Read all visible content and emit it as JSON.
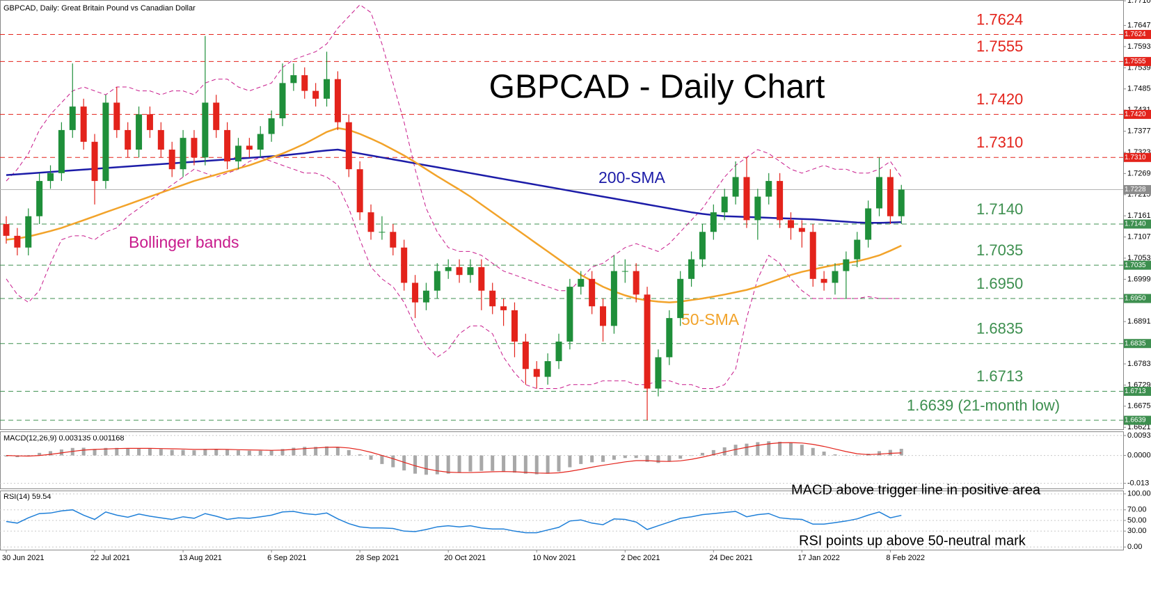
{
  "chart_data": [
    {
      "type": "candlestick",
      "header": "GBPCAD, Daily:  Great Britain Pound vs Canadian Dollar",
      "title": "GBPCAD - Daily Chart",
      "categories": [
        "30 Jun 2021",
        null,
        null,
        null,
        null,
        null,
        null,
        null,
        "22 Jul 2021",
        null,
        null,
        null,
        null,
        null,
        null,
        null,
        "13 Aug 2021",
        null,
        null,
        null,
        null,
        null,
        null,
        null,
        "6 Sep 2021",
        null,
        null,
        null,
        null,
        null,
        null,
        null,
        "28 Sep 2021",
        null,
        null,
        null,
        null,
        null,
        null,
        null,
        "20 Oct 2021",
        null,
        null,
        null,
        null,
        null,
        null,
        null,
        "10 Nov 2021",
        null,
        null,
        null,
        null,
        null,
        null,
        null,
        "2 Dec 2021",
        null,
        null,
        null,
        null,
        null,
        null,
        null,
        "24 Dec 2021",
        null,
        null,
        null,
        null,
        null,
        null,
        null,
        "17 Jan 2022",
        null,
        null,
        null,
        null,
        null,
        null,
        null,
        "8 Feb 2022",
        null
      ],
      "open": [
        1.714,
        1.711,
        1.708,
        1.716,
        1.725,
        1.727,
        1.738,
        1.744,
        1.735,
        1.725,
        1.745,
        1.738,
        1.733,
        1.742,
        1.738,
        1.733,
        1.728,
        1.736,
        1.731,
        1.745,
        1.738,
        1.73,
        1.734,
        1.733,
        1.737,
        1.741,
        1.75,
        1.752,
        1.748,
        1.746,
        1.751,
        1.74,
        1.728,
        1.717,
        1.712,
        1.712,
        1.708,
        1.699,
        1.694,
        1.697,
        1.702,
        1.703,
        1.701,
        1.703,
        1.697,
        1.693,
        1.692,
        1.684,
        1.677,
        1.675,
        1.679,
        1.684,
        1.698,
        1.7,
        1.693,
        1.688,
        1.702,
        1.702,
        1.696,
        1.672,
        1.68,
        1.69,
        1.7,
        1.705,
        1.712,
        1.717,
        1.721,
        1.726,
        1.715,
        1.721,
        1.725,
        1.715,
        1.713,
        1.712,
        1.7,
        1.699,
        1.702,
        1.705,
        1.71,
        1.718,
        1.726,
        1.716
      ],
      "high": [
        1.716,
        1.713,
        1.718,
        1.727,
        1.729,
        1.74,
        1.755,
        1.746,
        1.737,
        1.747,
        1.749,
        1.74,
        1.744,
        1.744,
        1.74,
        1.735,
        1.738,
        1.738,
        1.762,
        1.747,
        1.74,
        1.736,
        1.736,
        1.739,
        1.743,
        1.755,
        1.755,
        1.754,
        1.75,
        1.758,
        1.753,
        1.742,
        1.73,
        1.719,
        1.716,
        1.714,
        1.71,
        1.701,
        1.699,
        1.704,
        1.705,
        1.705,
        1.705,
        1.705,
        1.699,
        1.695,
        1.694,
        1.686,
        1.679,
        1.681,
        1.686,
        1.7,
        1.702,
        1.702,
        1.695,
        1.706,
        1.705,
        1.704,
        1.698,
        1.682,
        1.692,
        1.702,
        1.707,
        1.714,
        1.719,
        1.723,
        1.73,
        1.731,
        1.723,
        1.727,
        1.727,
        1.717,
        1.715,
        1.714,
        1.702,
        1.704,
        1.707,
        1.712,
        1.72,
        1.731,
        1.728,
        1.724
      ],
      "low": [
        1.709,
        1.706,
        1.706,
        1.714,
        1.723,
        1.725,
        1.736,
        1.733,
        1.719,
        1.723,
        1.736,
        1.731,
        1.731,
        1.736,
        1.731,
        1.726,
        1.726,
        1.729,
        1.729,
        1.736,
        1.728,
        1.728,
        1.731,
        1.731,
        1.735,
        1.739,
        1.748,
        1.746,
        1.744,
        1.744,
        1.738,
        1.726,
        1.715,
        1.71,
        1.71,
        1.706,
        1.697,
        1.69,
        1.692,
        1.695,
        1.7,
        1.699,
        1.699,
        1.692,
        1.691,
        1.688,
        1.68,
        1.673,
        1.672,
        1.673,
        1.677,
        1.682,
        1.696,
        1.691,
        1.684,
        1.686,
        1.699,
        1.694,
        1.6639,
        1.67,
        1.678,
        1.688,
        1.698,
        1.703,
        1.71,
        1.715,
        1.719,
        1.713,
        1.71,
        1.719,
        1.713,
        1.71,
        1.708,
        1.698,
        1.697,
        1.696,
        1.695,
        1.703,
        1.708,
        1.716,
        1.714,
        1.714
      ],
      "close": [
        1.711,
        1.708,
        1.716,
        1.725,
        1.727,
        1.738,
        1.744,
        1.735,
        1.725,
        1.745,
        1.738,
        1.733,
        1.742,
        1.738,
        1.733,
        1.728,
        1.736,
        1.731,
        1.745,
        1.738,
        1.73,
        1.734,
        1.733,
        1.737,
        1.741,
        1.75,
        1.752,
        1.748,
        1.746,
        1.751,
        1.74,
        1.728,
        1.717,
        1.712,
        1.712,
        1.708,
        1.699,
        1.694,
        1.697,
        1.702,
        1.703,
        1.701,
        1.703,
        1.697,
        1.693,
        1.692,
        1.684,
        1.677,
        1.675,
        1.679,
        1.684,
        1.698,
        1.7,
        1.693,
        1.688,
        1.702,
        1.702,
        1.696,
        1.672,
        1.68,
        1.69,
        1.7,
        1.705,
        1.712,
        1.717,
        1.721,
        1.726,
        1.715,
        1.721,
        1.725,
        1.715,
        1.713,
        1.712,
        1.7,
        1.699,
        1.702,
        1.705,
        1.71,
        1.718,
        1.726,
        1.716,
        1.7228
      ],
      "up_color": "#1f8f3a",
      "down_color": "#e3231b",
      "last_color": "#b4b4b4",
      "overlays": [
        {
          "name": "200-SMA",
          "color": "#1c1ca8",
          "values": [
            1.7265,
            1.7267,
            1.7269,
            1.7271,
            1.7273,
            1.7275,
            1.7277,
            1.7279,
            1.7281,
            1.7283,
            1.7285,
            1.7287,
            1.7289,
            1.7291,
            1.7293,
            1.7295,
            1.7297,
            1.7299,
            1.7301,
            1.7303,
            1.7305,
            1.7307,
            1.7309,
            1.7311,
            1.7313,
            1.7315,
            1.7318,
            1.7321,
            1.7325,
            1.7328,
            1.733,
            1.7325,
            1.732,
            1.7315,
            1.731,
            1.7305,
            1.73,
            1.7295,
            1.729,
            1.7285,
            1.728,
            1.7275,
            1.727,
            1.7265,
            1.726,
            1.7255,
            1.725,
            1.7245,
            1.724,
            1.7235,
            1.723,
            1.7225,
            1.722,
            1.7215,
            1.721,
            1.7205,
            1.72,
            1.7195,
            1.719,
            1.7185,
            1.718,
            1.7175,
            1.717,
            1.7166,
            1.7163,
            1.716,
            1.7159,
            1.7158,
            1.7157,
            1.7156,
            1.7155,
            1.7154,
            1.7153,
            1.7152,
            1.715,
            1.7148,
            1.7146,
            1.7144,
            1.7143,
            1.7143,
            1.7144,
            1.7145
          ]
        },
        {
          "name": "50-SMA",
          "color": "#f2a32a",
          "values": [
            1.71,
            1.7103,
            1.7108,
            1.7115,
            1.7122,
            1.713,
            1.714,
            1.715,
            1.716,
            1.717,
            1.718,
            1.719,
            1.72,
            1.721,
            1.722,
            1.723,
            1.724,
            1.725,
            1.7258,
            1.7266,
            1.7274,
            1.7282,
            1.729,
            1.73,
            1.731,
            1.732,
            1.7332,
            1.7345,
            1.736,
            1.7375,
            1.7385,
            1.738,
            1.737,
            1.7358,
            1.7345,
            1.733,
            1.7315,
            1.7298,
            1.728,
            1.7262,
            1.7245,
            1.7228,
            1.721,
            1.719,
            1.717,
            1.715,
            1.713,
            1.711,
            1.709,
            1.707,
            1.705,
            1.703,
            1.701,
            1.6995,
            1.698,
            1.6968,
            1.6958,
            1.695,
            1.6945,
            1.6942,
            1.694,
            1.6942,
            1.6946,
            1.695,
            1.6955,
            1.696,
            1.6966,
            1.6972,
            1.698,
            1.699,
            1.7,
            1.701,
            1.7018,
            1.7024,
            1.703,
            1.7036,
            1.704,
            1.7045,
            1.7052,
            1.706,
            1.7072,
            1.7085
          ]
        }
      ],
      "bollinger": {
        "name": "Bollinger bands",
        "color": "#c81b8c",
        "upper": [
          1.725,
          1.728,
          1.732,
          1.738,
          1.742,
          1.745,
          1.748,
          1.749,
          1.748,
          1.747,
          1.749,
          1.749,
          1.748,
          1.748,
          1.747,
          1.748,
          1.748,
          1.747,
          1.75,
          1.751,
          1.751,
          1.749,
          1.748,
          1.749,
          1.75,
          1.754,
          1.756,
          1.757,
          1.758,
          1.76,
          1.764,
          1.767,
          1.77,
          1.768,
          1.76,
          1.75,
          1.74,
          1.728,
          1.718,
          1.712,
          1.708,
          1.707,
          1.707,
          1.706,
          1.704,
          1.702,
          1.701,
          1.7,
          1.699,
          1.698,
          1.697,
          1.697,
          1.7,
          1.703,
          1.704,
          1.706,
          1.708,
          1.709,
          1.708,
          1.707,
          1.709,
          1.712,
          1.715,
          1.718,
          1.722,
          1.726,
          1.729,
          1.731,
          1.733,
          1.732,
          1.73,
          1.728,
          1.727,
          1.728,
          1.729,
          1.728,
          1.728,
          1.727,
          1.727,
          1.728,
          1.73,
          1.726
        ],
        "lower": [
          1.7,
          1.696,
          1.694,
          1.697,
          1.704,
          1.71,
          1.711,
          1.711,
          1.71,
          1.712,
          1.713,
          1.716,
          1.718,
          1.72,
          1.722,
          1.724,
          1.726,
          1.728,
          1.727,
          1.726,
          1.727,
          1.728,
          1.73,
          1.731,
          1.73,
          1.729,
          1.728,
          1.727,
          1.727,
          1.726,
          1.724,
          1.718,
          1.71,
          1.703,
          1.7,
          1.698,
          1.694,
          1.688,
          1.683,
          1.68,
          1.682,
          1.686,
          1.688,
          1.688,
          1.686,
          1.68,
          1.676,
          1.673,
          1.672,
          1.672,
          1.672,
          1.673,
          1.673,
          1.673,
          1.674,
          1.674,
          1.674,
          1.673,
          1.673,
          1.674,
          1.674,
          1.673,
          1.673,
          1.672,
          1.672,
          1.673,
          1.677,
          1.69,
          1.7,
          1.706,
          1.704,
          1.7,
          1.697,
          1.695,
          1.695,
          1.695,
          1.695,
          1.695,
          1.6955,
          1.695,
          1.695,
          1.695
        ]
      },
      "levels": [
        {
          "value": 1.7624,
          "label": "1.7624",
          "color": "#e3231b"
        },
        {
          "value": 1.7555,
          "label": "1.7555",
          "color": "#e3231b"
        },
        {
          "value": 1.742,
          "label": "1.7420",
          "color": "#e3231b"
        },
        {
          "value": 1.731,
          "label": "1.7310",
          "color": "#e3231b"
        },
        {
          "value": 1.714,
          "label": "1.7140",
          "color": "#3d8f4f"
        },
        {
          "value": 1.7035,
          "label": "1.7035",
          "color": "#3d8f4f"
        },
        {
          "value": 1.695,
          "label": "1.6950",
          "color": "#3d8f4f"
        },
        {
          "value": 1.6835,
          "label": "1.6835",
          "color": "#3d8f4f"
        },
        {
          "value": 1.6713,
          "label": "1.6713",
          "color": "#3d8f4f"
        },
        {
          "value": 1.6639,
          "label": "1.6639 (21-month low)",
          "color": "#3d8f4f"
        }
      ],
      "ylim": [
        1.6616,
        1.7712
      ],
      "yticks": [
        {
          "value": 1.771,
          "label": "1.7710"
        },
        1.7647,
        1.7593,
        1.7539,
        1.7485,
        1.7431,
        1.7377,
        1.7323,
        1.7269,
        1.7215,
        1.7161,
        1.7107,
        1.7053,
        1.6999,
        1.6945,
        1.6891,
        1.6837,
        1.6783,
        1.6729,
        1.6675,
        1.6621
      ]
    },
    {
      "type": "macd",
      "header": "MACD(12,26,9) 0.003135 0.001168",
      "annotation": "MACD above trigger line in positive area",
      "histogram": {
        "color": "#a8a8a8",
        "values": [
          -0.0005,
          -0.0008,
          0.0002,
          0.0012,
          0.002,
          0.0028,
          0.0035,
          0.0036,
          0.003,
          0.0035,
          0.0035,
          0.0032,
          0.0034,
          0.0033,
          0.003,
          0.0026,
          0.0026,
          0.0024,
          0.003,
          0.003,
          0.0026,
          0.0024,
          0.0022,
          0.0022,
          0.0024,
          0.003,
          0.0036,
          0.004,
          0.004,
          0.0042,
          0.0038,
          0.0025,
          0.0005,
          -0.002,
          -0.004,
          -0.0055,
          -0.007,
          -0.0085,
          -0.009,
          -0.0088,
          -0.0085,
          -0.008,
          -0.0075,
          -0.0072,
          -0.0072,
          -0.0075,
          -0.008,
          -0.0085,
          -0.0088,
          -0.0085,
          -0.0075,
          -0.0055,
          -0.004,
          -0.0032,
          -0.003,
          -0.002,
          -0.0012,
          -0.0012,
          -0.003,
          -0.0035,
          -0.0028,
          -0.0015,
          -0.0002,
          0.0012,
          0.0025,
          0.0038,
          0.005,
          0.0055,
          0.0062,
          0.0066,
          0.0064,
          0.0058,
          0.005,
          0.0035,
          0.0018,
          0.0005,
          0,
          -0.0002,
          0.0008,
          0.002,
          0.0026,
          0.0031
        ]
      },
      "signal": {
        "color": "#e3231b",
        "values": [
          0,
          -0.0002,
          -0.0003,
          0,
          0.0005,
          0.0012,
          0.0019,
          0.0025,
          0.0028,
          0.003,
          0.0032,
          0.0033,
          0.0033,
          0.0033,
          0.0032,
          0.0031,
          0.003,
          0.0028,
          0.0028,
          0.0029,
          0.0028,
          0.0027,
          0.0026,
          0.0025,
          0.0024,
          0.0025,
          0.0028,
          0.0032,
          0.0035,
          0.0038,
          0.0039,
          0.0035,
          0.0027,
          0.0015,
          0,
          -0.0015,
          -0.0032,
          -0.0048,
          -0.0062,
          -0.0072,
          -0.0078,
          -0.008,
          -0.008,
          -0.0078,
          -0.0076,
          -0.0075,
          -0.0076,
          -0.0079,
          -0.0082,
          -0.0083,
          -0.0081,
          -0.0074,
          -0.0065,
          -0.0055,
          -0.0046,
          -0.0038,
          -0.003,
          -0.0024,
          -0.0024,
          -0.0027,
          -0.0028,
          -0.0025,
          -0.0018,
          -0.0008,
          0.0004,
          0.0016,
          0.0028,
          0.0038,
          0.0047,
          0.0054,
          0.0059,
          0.006,
          0.0058,
          0.0052,
          0.0042,
          0.003,
          0.0018,
          0.0008,
          0.0004,
          0.0006,
          0.001,
          0.0012
        ]
      },
      "ylim": [
        -0.0154,
        0.0109
      ],
      "yticks": [
        0.0093,
        {
          "value": 0,
          "label": "0.0000"
        },
        -0.013
      ]
    },
    {
      "type": "line",
      "header": "RSI(14) 59.54",
      "annotation": "RSI points up above 50-neutral mark",
      "color": "#1e7fd8",
      "values": [
        48,
        45,
        55,
        63,
        64,
        68,
        70,
        60,
        52,
        66,
        60,
        56,
        62,
        58,
        55,
        52,
        57,
        54,
        63,
        58,
        52,
        55,
        54,
        57,
        60,
        66,
        67,
        63,
        61,
        64,
        53,
        44,
        38,
        36,
        36,
        35,
        30,
        29,
        33,
        38,
        40,
        38,
        40,
        36,
        34,
        34,
        30,
        27,
        27,
        32,
        37,
        49,
        51,
        45,
        42,
        53,
        52,
        47,
        33,
        40,
        47,
        54,
        57,
        61,
        63,
        65,
        67,
        57,
        61,
        63,
        55,
        53,
        52,
        43,
        43,
        46,
        49,
        53,
        60,
        66,
        55,
        59.54
      ],
      "ylim": [
        -5,
        105
      ],
      "yticks": [
        {
          "value": 100,
          "label": "100.00"
        },
        {
          "value": 70,
          "label": "70.00"
        },
        {
          "value": 50,
          "label": "50.00"
        },
        {
          "value": 30,
          "label": "30.00"
        },
        {
          "value": 0,
          "label": "0.00"
        }
      ]
    }
  ]
}
